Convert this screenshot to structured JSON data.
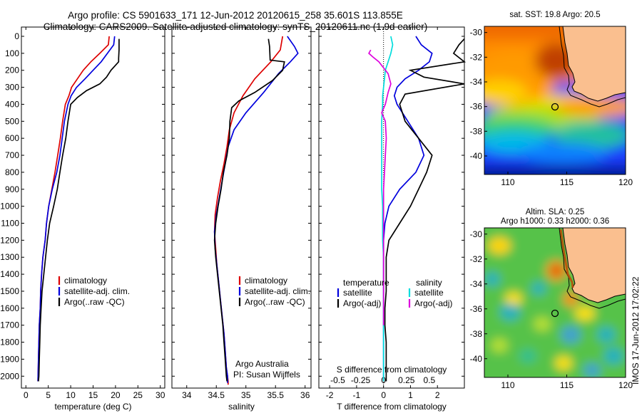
{
  "header": {
    "line1": "Argo profile: CS 5901633_171 12-Jun-2012 20120615_258 35.601S 113.855E",
    "line2": "Climatology: CARS2009. Satellite-adjusted climatology: synTS_20120611.nc (1.9d earlier)"
  },
  "chart_data": [
    {
      "type": "line",
      "xlabel": "temperature (deg C)",
      "ylabel": "",
      "xlim": [
        -1,
        31
      ],
      "ylim": [
        2070,
        0
      ],
      "xticks": [
        0,
        5,
        10,
        15,
        20,
        25,
        30
      ],
      "yticks": [
        0,
        100,
        200,
        300,
        400,
        500,
        600,
        700,
        800,
        900,
        1000,
        1100,
        1200,
        1300,
        1400,
        1500,
        1600,
        1700,
        1800,
        1900,
        2000
      ],
      "legend": [
        "climatology",
        "satellite-adj. clim.",
        "Argo(..raw -QC)"
      ],
      "legend_position": "lower-center",
      "series": [
        {
          "name": "climatology",
          "color": "#dd0000",
          "x": [
            18.6,
            18.4,
            16.5,
            14.5,
            12.8,
            11.5,
            10.2,
            9.6,
            8.8,
            8.2,
            7.7,
            7.1,
            6.5,
            5.8,
            5.1,
            4.6,
            4.3,
            3.8,
            3.5,
            3.3,
            3.2,
            3.0,
            2.9,
            2.8,
            2.7
          ],
          "y": [
            0,
            50,
            100,
            150,
            200,
            250,
            300,
            350,
            400,
            500,
            600,
            700,
            800,
            900,
            1000,
            1100,
            1200,
            1300,
            1400,
            1500,
            1600,
            1700,
            1800,
            1900,
            2030
          ]
        },
        {
          "name": "satellite-adj. clim.",
          "color": "#0000dd",
          "x": [
            19.8,
            19.6,
            18.2,
            16.8,
            15.0,
            13.2,
            11.3,
            10.1,
            9.4,
            8.6,
            8.1,
            7.6,
            6.9,
            5.9,
            5.1,
            4.6,
            4.3,
            3.8,
            3.5,
            3.3,
            3.2,
            3.0,
            2.9,
            2.8,
            2.7
          ],
          "y": [
            0,
            50,
            100,
            150,
            200,
            250,
            300,
            350,
            400,
            500,
            600,
            700,
            800,
            900,
            1000,
            1100,
            1200,
            1300,
            1400,
            1500,
            1600,
            1700,
            1800,
            1900,
            2030
          ]
        },
        {
          "name": "Argo(..raw -QC)",
          "color": "#000000",
          "x": [
            20.8,
            20.8,
            20.7,
            20.7,
            19.0,
            18.0,
            16.5,
            13.5,
            11.5,
            10.0,
            9.4,
            8.9,
            8.2,
            7.6,
            7.0,
            6.2,
            5.3,
            4.8,
            4.4,
            4.0,
            3.6,
            3.4,
            3.2,
            3.1,
            3.0,
            2.9,
            2.8
          ],
          "y": [
            15,
            80,
            130,
            150,
            200,
            240,
            280,
            320,
            360,
            400,
            500,
            600,
            700,
            800,
            900,
            1000,
            1100,
            1200,
            1300,
            1400,
            1500,
            1600,
            1700,
            1800,
            1900,
            2000,
            2030
          ]
        }
      ]
    },
    {
      "type": "line",
      "xlabel": "salinity",
      "ylabel": "",
      "xlim": [
        33.75,
        36.1
      ],
      "ylim": [
        2070,
        0
      ],
      "xticks": [
        34,
        34.5,
        35,
        35.5,
        36
      ],
      "xtick_labels": [
        "34",
        "34.5",
        "35",
        "35.5",
        "36"
      ],
      "legend": [
        "climatology",
        "satellite-adj. clim.",
        "Argo(..raw -QC)"
      ],
      "legend_position": "lower-right",
      "annotation": [
        "Argo Australia",
        "PI: Susan Wijffels"
      ],
      "series": [
        {
          "name": "climatology",
          "color": "#dd0000",
          "x": [
            35.62,
            35.58,
            35.42,
            35.15,
            34.95,
            34.8,
            34.72,
            34.68,
            34.63,
            34.57,
            34.52,
            34.48,
            34.47,
            34.49,
            34.51,
            34.54,
            34.57,
            34.6,
            34.63,
            34.65,
            34.67,
            34.69,
            34.7,
            34.7
          ],
          "y": [
            0,
            80,
            150,
            250,
            350,
            450,
            550,
            650,
            750,
            850,
            950,
            1050,
            1150,
            1250,
            1350,
            1450,
            1550,
            1650,
            1750,
            1850,
            1950,
            2000,
            2030,
            2050
          ]
        },
        {
          "name": "satellite-adj. clim.",
          "color": "#0000dd",
          "x": [
            35.7,
            35.82,
            35.88,
            35.75,
            35.55,
            35.3,
            35.0,
            34.8,
            34.7,
            34.65,
            34.6,
            34.55,
            34.5,
            34.47,
            34.48,
            34.51,
            34.54,
            34.57,
            34.6,
            34.63,
            34.65,
            34.67,
            34.69,
            34.69
          ],
          "y": [
            0,
            60,
            100,
            150,
            220,
            330,
            450,
            550,
            650,
            750,
            850,
            950,
            1050,
            1150,
            1250,
            1350,
            1450,
            1550,
            1650,
            1750,
            1850,
            1950,
            2000,
            2040
          ]
        },
        {
          "name": "Argo(..raw -QC)",
          "color": "#000000",
          "x": [
            35.38,
            35.4,
            35.41,
            35.65,
            35.62,
            35.45,
            35.15,
            34.88,
            34.76,
            34.73,
            34.72,
            34.68,
            34.62,
            34.58,
            34.53,
            34.49,
            34.47,
            34.49,
            34.52,
            34.55,
            34.58,
            34.61,
            34.63,
            34.65,
            34.66,
            34.67,
            34.68
          ],
          "y": [
            15,
            60,
            140,
            150,
            200,
            260,
            330,
            380,
            420,
            500,
            600,
            700,
            800,
            900,
            1000,
            1100,
            1200,
            1300,
            1400,
            1500,
            1600,
            1700,
            1800,
            1900,
            1950,
            2000,
            2030
          ]
        }
      ]
    },
    {
      "type": "line",
      "xlabel": "T difference from climatology",
      "xlabel2": "S difference from climatology",
      "xlim": [
        -2.4,
        3.0
      ],
      "ylim": [
        2070,
        0
      ],
      "xticks": [
        -2,
        -1,
        0,
        1,
        2
      ],
      "xtick_labels": [
        "-2",
        "-1",
        "0",
        "1",
        "2"
      ],
      "s_xticks": [
        -0.5,
        -0.25,
        0,
        0.25,
        0.5
      ],
      "s_xtick_labels": [
        "-0.5",
        "-0.25",
        "0",
        "0.25",
        "0.5"
      ],
      "legend_temperature": {
        "title": "temperature",
        "entries": [
          "satellite",
          "Argo(-adj)"
        ]
      },
      "legend_salinity": {
        "title": "salinity",
        "entries": [
          "satellite",
          "Argo(-adj)"
        ]
      },
      "series": [
        {
          "name": "satellite",
          "group": "temperature",
          "color": "#0000dd",
          "x": [
            1.2,
            1.4,
            1.8,
            1.7,
            1.3,
            0.8,
            0.5,
            0.4,
            0.5,
            0.9,
            1.3,
            1.5,
            1.2,
            0.6,
            0.2,
            0.05,
            0.0,
            0.0,
            0.0,
            0.0,
            0.0,
            0.0,
            0.0,
            0.0,
            0.0
          ],
          "y": [
            0,
            50,
            100,
            150,
            200,
            250,
            300,
            350,
            400,
            500,
            600,
            700,
            800,
            900,
            1000,
            1100,
            1200,
            1300,
            1400,
            1500,
            1600,
            1700,
            1800,
            1900,
            2030
          ]
        },
        {
          "name": "Argo(-adj)",
          "group": "temperature",
          "color": "#000000",
          "x": [
            3.0,
            2.8,
            2.6,
            3.0,
            1.0,
            1.5,
            3.0,
            0.8,
            0.6,
            0.8,
            1.3,
            1.8,
            1.6,
            1.3,
            1.0,
            0.6,
            0.2,
            0.1,
            0.1,
            0.1,
            0.05,
            0.05,
            0.1,
            0.1,
            0.1,
            0.1
          ],
          "y": [
            15,
            50,
            100,
            150,
            200,
            240,
            280,
            340,
            400,
            500,
            600,
            700,
            800,
            900,
            1000,
            1100,
            1200,
            1300,
            1400,
            1500,
            1600,
            1700,
            1800,
            1900,
            2000,
            2030
          ]
        },
        {
          "name": "satellite",
          "group": "salinity",
          "color": "#00dddd",
          "x": [
            0.08,
            0.1,
            0.08,
            0.05,
            0.02,
            0.01,
            0.0,
            -0.01,
            -0.01,
            -0.02,
            -0.02,
            -0.02,
            -0.02,
            -0.02,
            -0.01,
            -0.01,
            -0.01,
            0.0,
            0.0,
            0.0,
            0.0,
            0.0,
            0.0,
            0.0,
            0.0
          ],
          "y": [
            0,
            50,
            100,
            150,
            200,
            250,
            300,
            350,
            400,
            500,
            600,
            700,
            800,
            900,
            1000,
            1100,
            1200,
            1300,
            1400,
            1500,
            1600,
            1700,
            1800,
            1900,
            2030
          ]
        },
        {
          "name": "Argo(-adj)",
          "group": "salinity",
          "color": "#dd00dd",
          "x": [
            -0.14,
            -0.16,
            -0.12,
            -0.05,
            0.05,
            0.08,
            0.05,
            0.02,
            -0.02,
            0.02,
            0.03,
            0.02,
            0.01,
            0.0,
            0.0,
            0.0,
            0.0,
            0.0,
            0.0,
            0.0,
            0.0,
            0.0
          ],
          "y": [
            80,
            100,
            120,
            150,
            220,
            280,
            330,
            400,
            450,
            500,
            600,
            700,
            800,
            900,
            1000,
            1100,
            1200,
            1300,
            1400,
            1500,
            1600,
            1700
          ]
        }
      ]
    },
    {
      "type": "heatmap",
      "title": "sat. SST: 19.8 Argo: 20.5",
      "xticks": [
        110,
        115,
        120
      ],
      "yticks": [
        -30,
        -32,
        -34,
        -36,
        -38,
        -40
      ],
      "xlim": [
        108,
        120
      ],
      "ylim": [
        -41.5,
        -29.5
      ],
      "marker": {
        "lon": 113.855,
        "lat": -35.601
      }
    },
    {
      "type": "heatmap",
      "title": "Altim. SLA: 0.25",
      "subtitle": "Argo h1000: 0.33 h2000: 0.36",
      "xticks": [
        110,
        115,
        120
      ],
      "yticks": [
        -30,
        -32,
        -34,
        -36,
        -38,
        -40
      ],
      "xlim": [
        108,
        120
      ],
      "ylim": [
        -41.5,
        -29.5
      ],
      "marker": {
        "lon": 113.855,
        "lat": -35.601
      }
    }
  ],
  "footer": {
    "stamp": "IMOS 17-Jun-2012 17:02:22"
  }
}
